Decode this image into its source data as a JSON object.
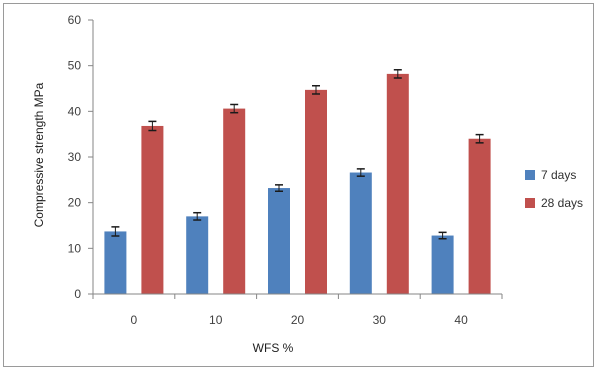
{
  "chart_data": {
    "type": "bar",
    "title": "",
    "xlabel": "WFS %",
    "ylabel": "Compressive strength MPa",
    "categories": [
      "0",
      "10",
      "20",
      "30",
      "40"
    ],
    "ylim": [
      0,
      60
    ],
    "yticks": [
      0,
      10,
      20,
      30,
      40,
      50,
      60
    ],
    "grid": false,
    "legend": "right",
    "series": [
      {
        "name": "7 days",
        "color": "#4f81bd",
        "values": [
          13.7,
          17.0,
          23.2,
          26.6,
          12.8
        ],
        "errors": [
          1.0,
          0.8,
          0.7,
          0.8,
          0.7
        ]
      },
      {
        "name": "28 days",
        "color": "#c0504d",
        "values": [
          36.8,
          40.6,
          44.7,
          48.2,
          34.0
        ],
        "errors": [
          1.0,
          0.9,
          0.9,
          0.9,
          0.9
        ]
      }
    ]
  }
}
